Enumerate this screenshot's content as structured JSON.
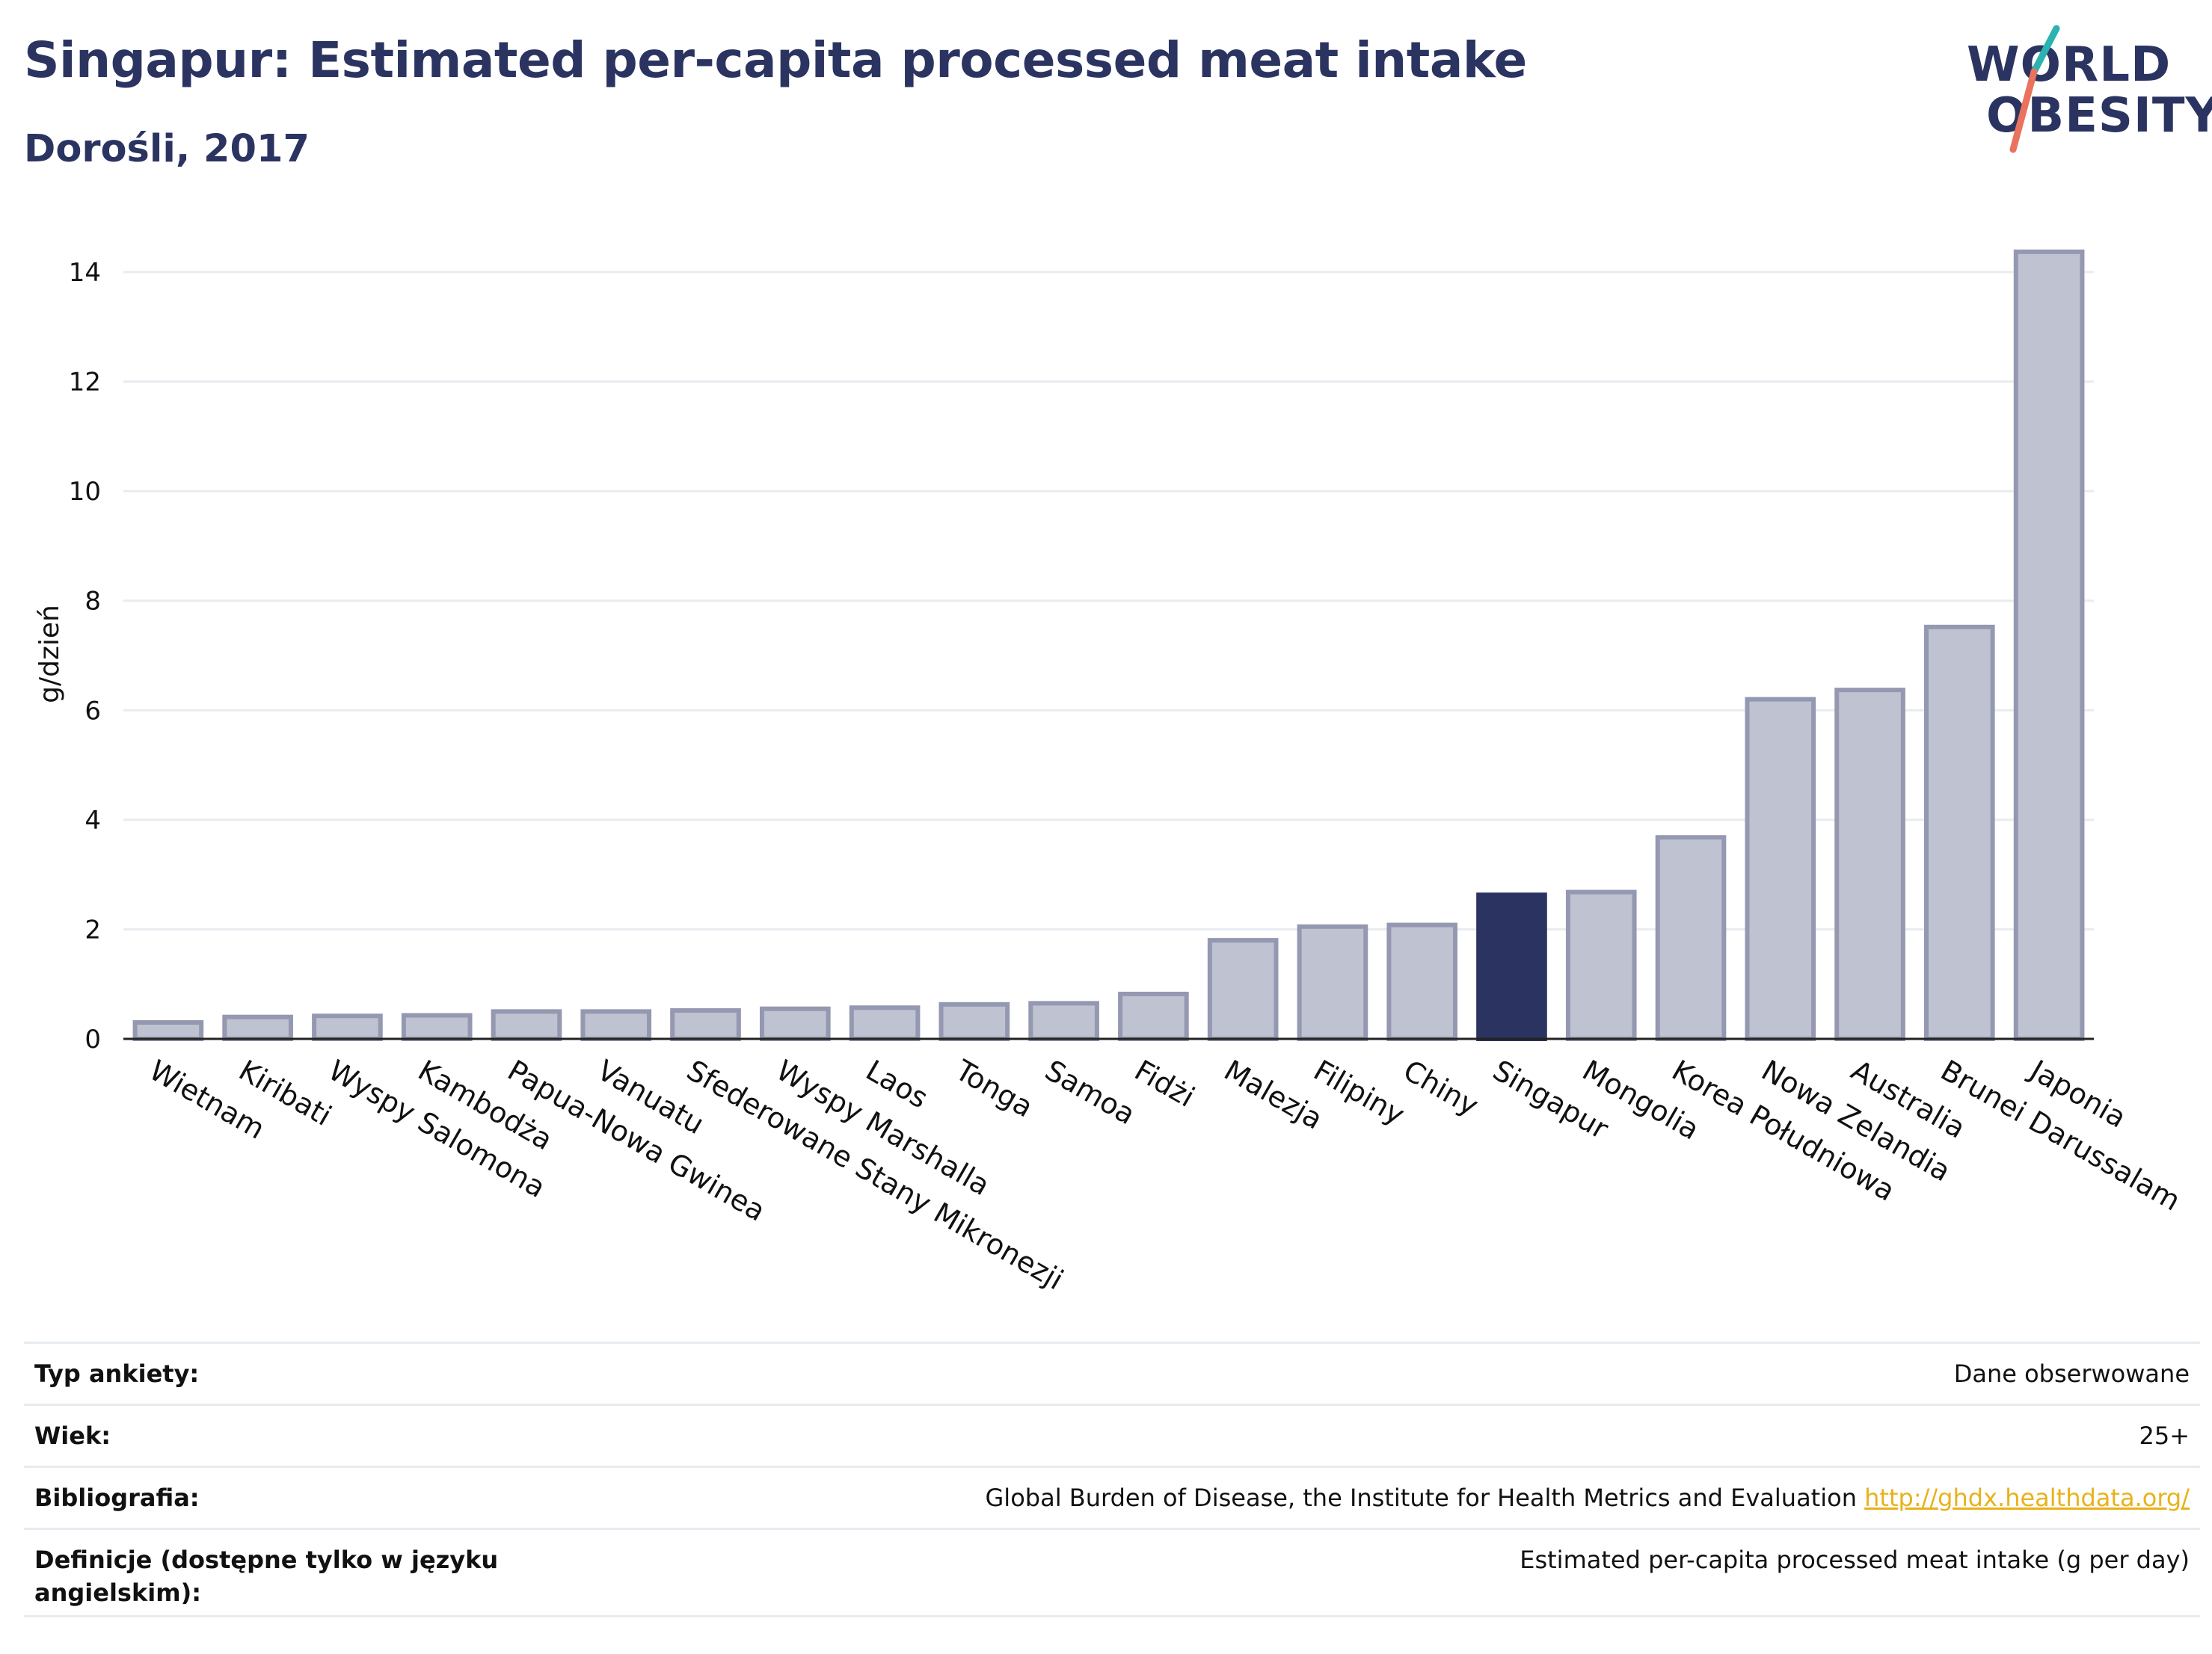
{
  "title": "Singapur: Estimated per-capita processed meat intake",
  "subtitle": "Dorośli, 2017",
  "logo": {
    "line1": "WORLD",
    "line2": "OBESITY"
  },
  "colors": {
    "primary": "#2b3461",
    "bar": "#bfc2d1",
    "bar_stroke": "#9498b0",
    "highlight": "#2b3461",
    "link": "#e8b21c",
    "logo_teal": "#2bb3b1",
    "logo_coral": "#e9735e"
  },
  "chart_data": {
    "type": "bar",
    "ylabel": "g/dzień",
    "ylim": [
      0,
      14.6
    ],
    "yticks": [
      0,
      2,
      4,
      6,
      8,
      10,
      12,
      14
    ],
    "grid": true,
    "highlight": "Singapur",
    "categories": [
      "Wietnam",
      "Kiribati",
      "Wyspy Salomona",
      "Kambodża",
      "Papua-Nowa Gwinea",
      "Vanuatu",
      "Sfederowane Stany Mikronezji",
      "Wyspy Marshalla",
      "Laos",
      "Tonga",
      "Samoa",
      "Fidżi",
      "Malezja",
      "Filipiny",
      "Chiny",
      "Singapur",
      "Mongolia",
      "Korea Południowa",
      "Nowa Zelandia",
      "Australia",
      "Brunei Darussalam",
      "Japonia"
    ],
    "values": [
      0.3,
      0.4,
      0.42,
      0.43,
      0.5,
      0.5,
      0.52,
      0.55,
      0.57,
      0.63,
      0.65,
      0.82,
      1.8,
      2.05,
      2.08,
      2.63,
      2.68,
      3.68,
      6.2,
      6.37,
      7.52,
      14.37
    ]
  },
  "meta": [
    {
      "key": "Typ ankiety:",
      "value": "Dane obserwowane"
    },
    {
      "key": "Wiek:",
      "value": "25+"
    },
    {
      "key": "Bibliografia:",
      "value": "Global Burden of Disease, the Institute for Health Metrics and Evaluation",
      "link": "http://ghdx.healthdata.org/"
    },
    {
      "key": "Definicje (dostępne tylko w języku angielskim):",
      "value": "Estimated per-capita processed meat intake (g per day)"
    }
  ]
}
